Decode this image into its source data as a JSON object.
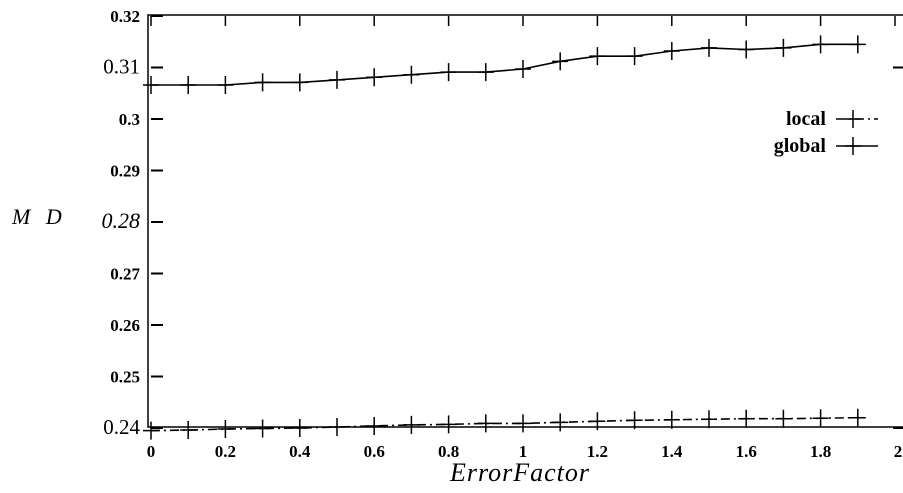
{
  "chart_data": {
    "type": "line",
    "xlabel": "ErrorFactor",
    "ylabel": "M D",
    "xlim": [
      0,
      2
    ],
    "ylim": [
      0.24,
      0.32
    ],
    "x_ticks": [
      "0",
      "0.2",
      "0.4",
      "0.6",
      "0.8",
      "1",
      "1.2",
      "1.4",
      "1.6",
      "1.8",
      "2"
    ],
    "y_ticks": [
      "0.24",
      "0.25",
      "0.26",
      "0.27",
      "0.28",
      "0.29",
      "0.3",
      "0.31",
      "0.32"
    ],
    "legend_position": "upper-right",
    "grid": false,
    "series": [
      {
        "name": "local",
        "style": "dash-dot",
        "marker": "+",
        "x": [
          0,
          0.1,
          0.2,
          0.3,
          0.4,
          0.5,
          0.6,
          0.7,
          0.8,
          0.9,
          1.0,
          1.1,
          1.2,
          1.3,
          1.4,
          1.5,
          1.6,
          1.7,
          1.8,
          1.9
        ],
        "values": [
          0.2395,
          0.2396,
          0.2398,
          0.2399,
          0.24,
          0.2402,
          0.2404,
          0.2406,
          0.2407,
          0.2409,
          0.2409,
          0.2411,
          0.2413,
          0.2415,
          0.2416,
          0.2417,
          0.2418,
          0.2418,
          0.2419,
          0.242
        ]
      },
      {
        "name": "global",
        "style": "solid",
        "marker": "+",
        "x": [
          0,
          0.1,
          0.2,
          0.3,
          0.4,
          0.5,
          0.6,
          0.7,
          0.8,
          0.9,
          1.0,
          1.1,
          1.2,
          1.3,
          1.4,
          1.5,
          1.6,
          1.7,
          1.8,
          1.9
        ],
        "values": [
          0.3066,
          0.3066,
          0.3066,
          0.3071,
          0.3071,
          0.3076,
          0.3081,
          0.3086,
          0.3091,
          0.3091,
          0.3097,
          0.3112,
          0.3122,
          0.3122,
          0.3132,
          0.3138,
          0.3135,
          0.3138,
          0.3145,
          0.3145
        ]
      }
    ]
  }
}
